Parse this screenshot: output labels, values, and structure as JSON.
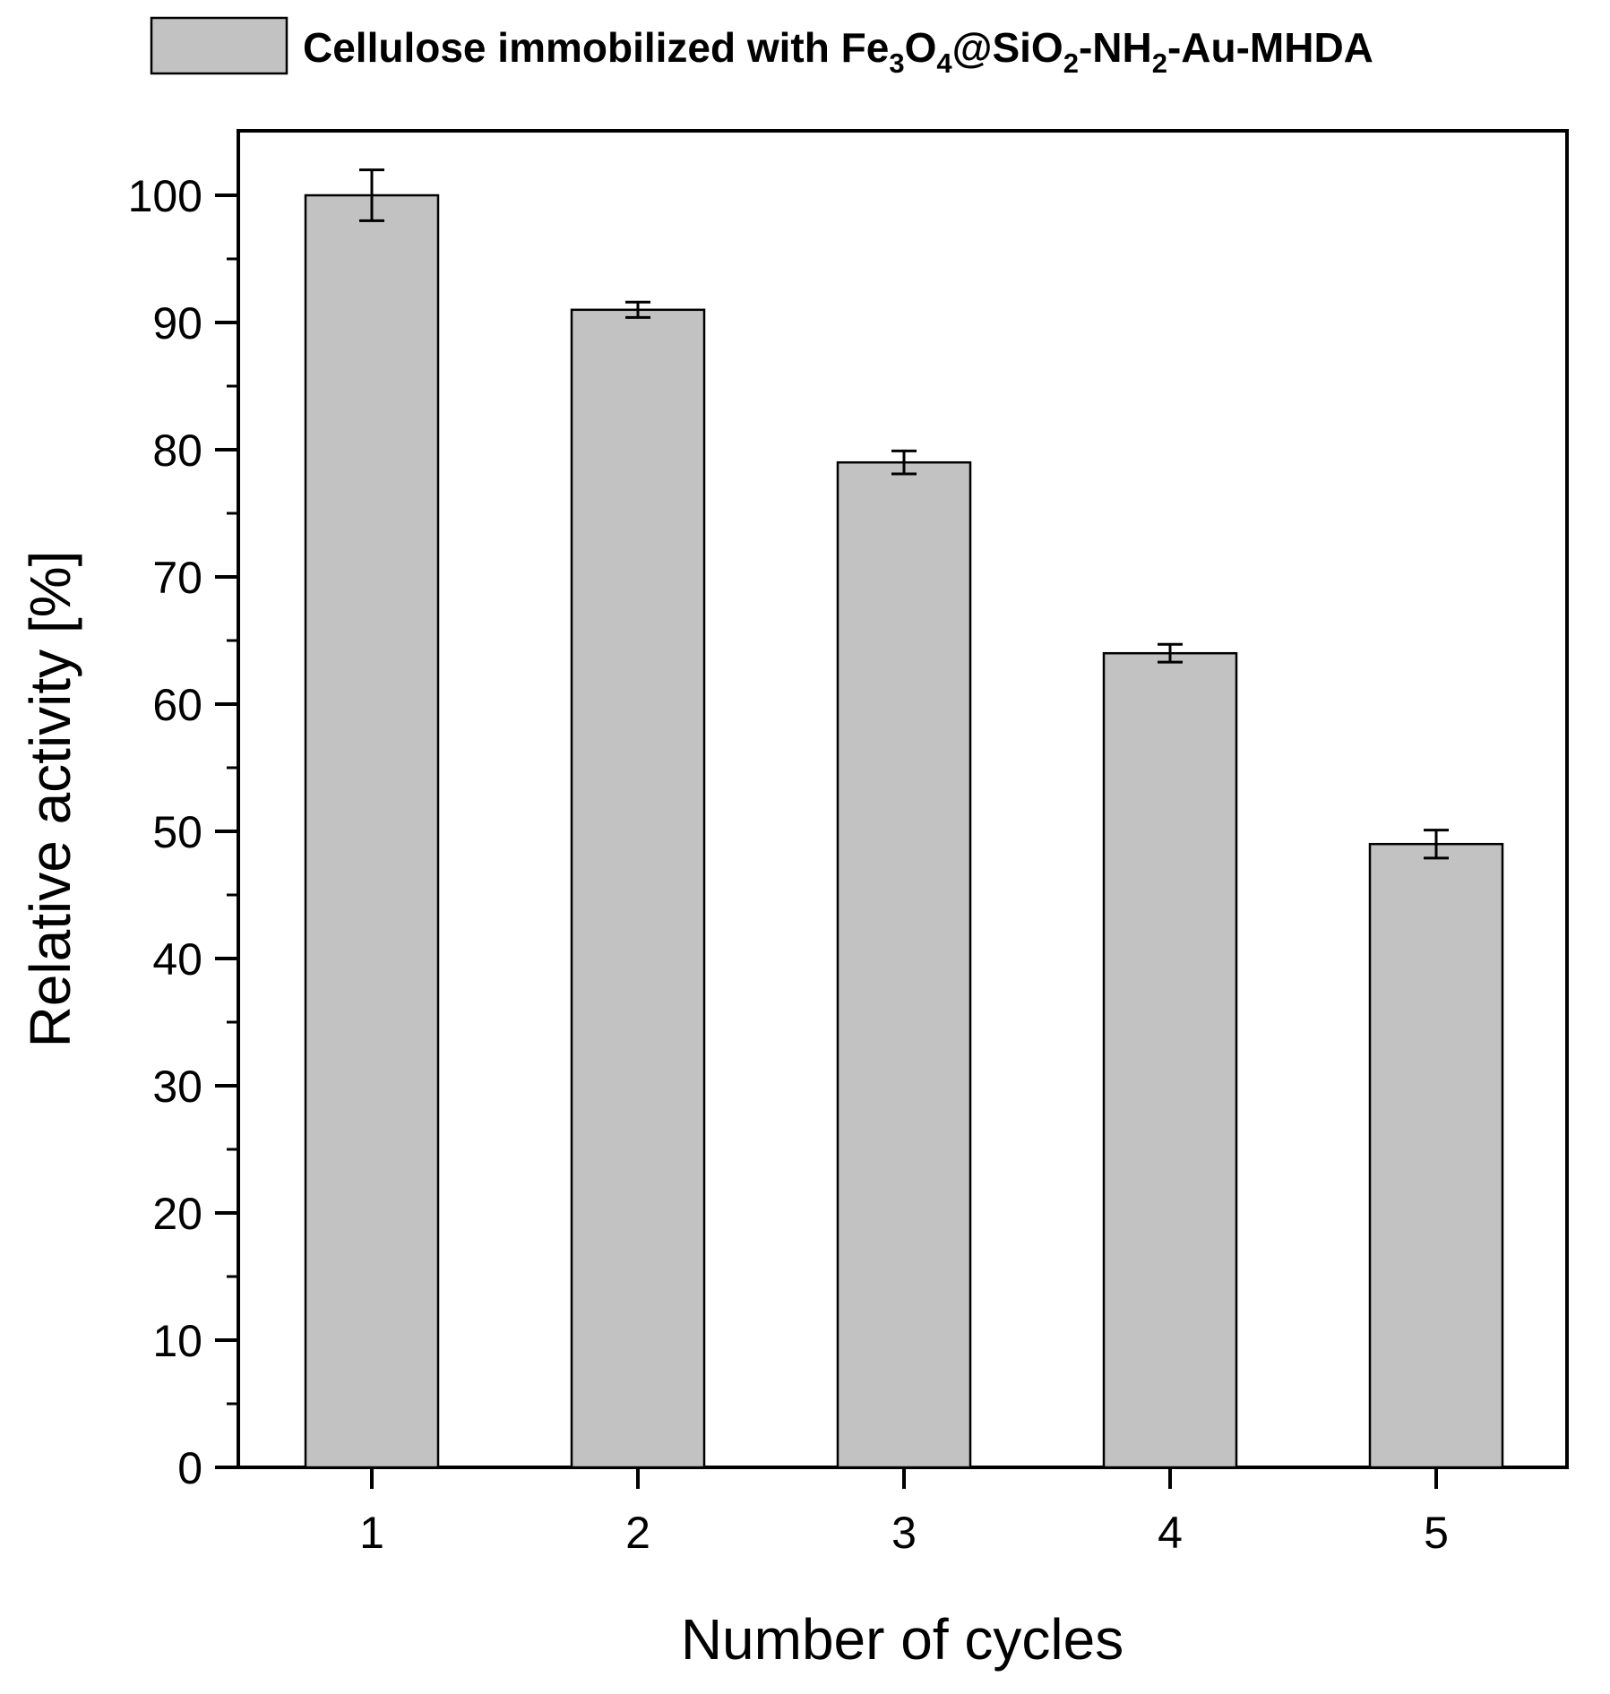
{
  "chart_data": {
    "type": "bar",
    "title": "",
    "legend": {
      "position": "top",
      "entries": [
        {
          "name": "Cellulose immobilized with Fe3O4@SiO2-NH2-Au-MHDA",
          "parts": [
            {
              "text": "Cellulose immobilized with Fe",
              "sub": false
            },
            {
              "text": "3",
              "sub": true
            },
            {
              "text": "O",
              "sub": false
            },
            {
              "text": "4",
              "sub": true
            },
            {
              "text": "@SiO",
              "sub": false
            },
            {
              "text": "2",
              "sub": true
            },
            {
              "text": "-NH",
              "sub": false
            },
            {
              "text": "2",
              "sub": true
            },
            {
              "text": "-Au-MHDA",
              "sub": false
            }
          ]
        }
      ]
    },
    "xlabel": "Number of cycles",
    "ylabel": "Relative activity [%]",
    "categories": [
      "1",
      "2",
      "3",
      "4",
      "5"
    ],
    "series": [
      {
        "name": "Cellulose immobilized with Fe3O4@SiO2-NH2-Au-MHDA",
        "values": [
          100,
          91,
          79,
          64,
          49
        ],
        "errors": [
          2.0,
          0.6,
          0.9,
          0.7,
          1.1
        ]
      }
    ],
    "ylim": [
      0,
      105
    ],
    "yticks": [
      0,
      10,
      20,
      30,
      40,
      50,
      60,
      70,
      80,
      90,
      100
    ],
    "grid": false,
    "colors": {
      "bar_fill": "#c2c2c2",
      "bar_stroke": "#000000",
      "axis": "#000000"
    }
  }
}
